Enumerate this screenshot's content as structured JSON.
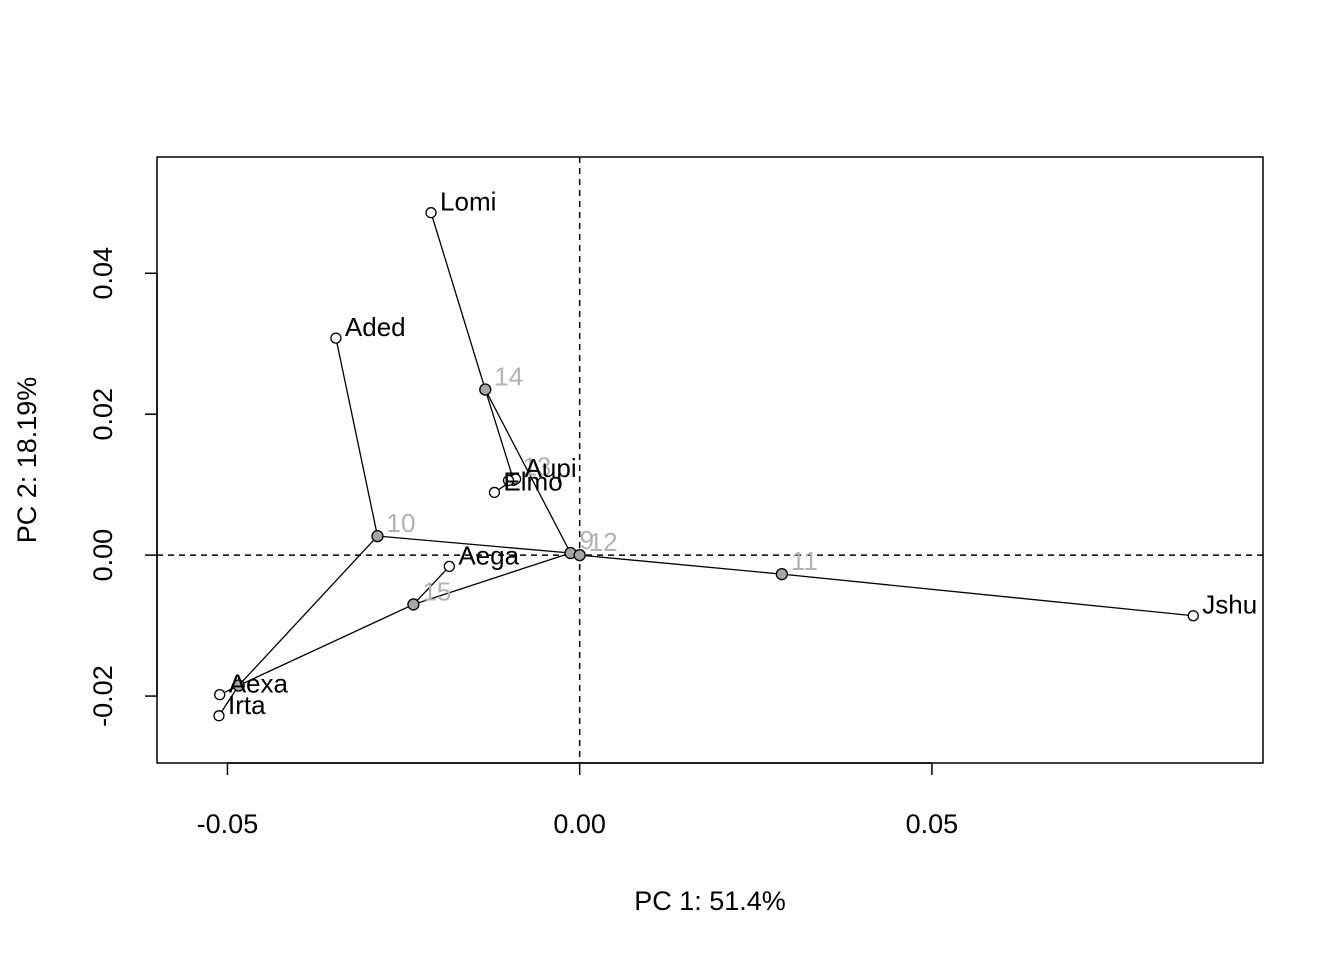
{
  "chart_data": {
    "type": "scatter",
    "title": "",
    "xlabel": "PC 1: 51.4%",
    "ylabel": "PC 2: 18.19%",
    "xlim": [
      -0.06,
      0.097
    ],
    "ylim": [
      -0.0295,
      0.0565
    ],
    "x_ticks": [
      {
        "value": -0.05,
        "label": "-0.05"
      },
      {
        "value": 0.0,
        "label": "0.00"
      },
      {
        "value": 0.05,
        "label": "0.05"
      }
    ],
    "y_ticks": [
      {
        "value": -0.02,
        "label": "-0.02"
      },
      {
        "value": 0.0,
        "label": "0.00"
      },
      {
        "value": 0.02,
        "label": "0.02"
      },
      {
        "value": 0.04,
        "label": "0.04"
      }
    ],
    "reference_lines": {
      "x": 0,
      "y": 0,
      "style": "dashed"
    },
    "grid": false,
    "tips": [
      {
        "label": "Lomi",
        "x": -0.0211,
        "y": 0.0486
      },
      {
        "label": "Aded",
        "x": -0.0346,
        "y": 0.0308
      },
      {
        "label": "Aupi",
        "x": -0.0091,
        "y": 0.0108
      },
      {
        "label": "Elmo",
        "x": -0.0121,
        "y": 0.0089
      },
      {
        "label": "Aega",
        "x": -0.0185,
        "y": -0.0016
      },
      {
        "label": "Jshu",
        "x": 0.0871,
        "y": -0.0086
      },
      {
        "label": "Aexa",
        "x": -0.0511,
        "y": -0.0198
      },
      {
        "label": "Irta",
        "x": -0.0512,
        "y": -0.0228
      },
      {
        "label": "",
        "x": -0.0101,
        "y": 0.0106
      }
    ],
    "nodes": [
      {
        "label": "14",
        "x": -0.0134,
        "y": 0.0235
      },
      {
        "label": "13",
        "x": -0.0094,
        "y": 0.0107
      },
      {
        "label": "10",
        "x": -0.0287,
        "y": 0.0027
      },
      {
        "label": "9",
        "x": -0.0013,
        "y": 0.0003
      },
      {
        "label": "12",
        "x": 0.0,
        "y": 0.0
      },
      {
        "label": "15",
        "x": -0.0236,
        "y": -0.007
      },
      {
        "label": "11",
        "x": 0.0287,
        "y": -0.0027
      },
      {
        "label": "",
        "x": -0.0484,
        "y": -0.0185
      }
    ],
    "edges": [
      [
        [
          0.0,
          0.0
        ],
        [
          -0.0013,
          0.0003
        ]
      ],
      [
        [
          0.0,
          0.0
        ],
        [
          0.0287,
          -0.0027
        ]
      ],
      [
        [
          0.0287,
          -0.0027
        ],
        [
          0.0871,
          -0.0086
        ]
      ],
      [
        [
          -0.0013,
          0.0003
        ],
        [
          -0.0134,
          0.0235
        ]
      ],
      [
        [
          -0.0134,
          0.0235
        ],
        [
          -0.0211,
          0.0486
        ]
      ],
      [
        [
          -0.0134,
          0.0235
        ],
        [
          -0.0094,
          0.0107
        ]
      ],
      [
        [
          -0.0094,
          0.0107
        ],
        [
          -0.0091,
          0.0108
        ]
      ],
      [
        [
          -0.0094,
          0.0107
        ],
        [
          -0.0121,
          0.0089
        ]
      ],
      [
        [
          -0.0013,
          0.0003
        ],
        [
          -0.0287,
          0.0027
        ]
      ],
      [
        [
          -0.0287,
          0.0027
        ],
        [
          -0.0346,
          0.0308
        ]
      ],
      [
        [
          -0.0287,
          0.0027
        ],
        [
          -0.0484,
          -0.0185
        ]
      ],
      [
        [
          -0.0013,
          0.0003
        ],
        [
          -0.0236,
          -0.007
        ]
      ],
      [
        [
          -0.0236,
          -0.007
        ],
        [
          -0.0185,
          -0.0016
        ]
      ],
      [
        [
          -0.0236,
          -0.007
        ],
        [
          -0.0484,
          -0.0185
        ]
      ],
      [
        [
          -0.0484,
          -0.0185
        ],
        [
          -0.0511,
          -0.0198
        ]
      ],
      [
        [
          -0.0484,
          -0.0185
        ],
        [
          -0.0512,
          -0.0228
        ]
      ]
    ],
    "colors": {
      "tip_fill": "#ffffff",
      "node_fill": "#a6a6a6",
      "node_label": "#b3b3b3",
      "line": "#000000"
    }
  }
}
